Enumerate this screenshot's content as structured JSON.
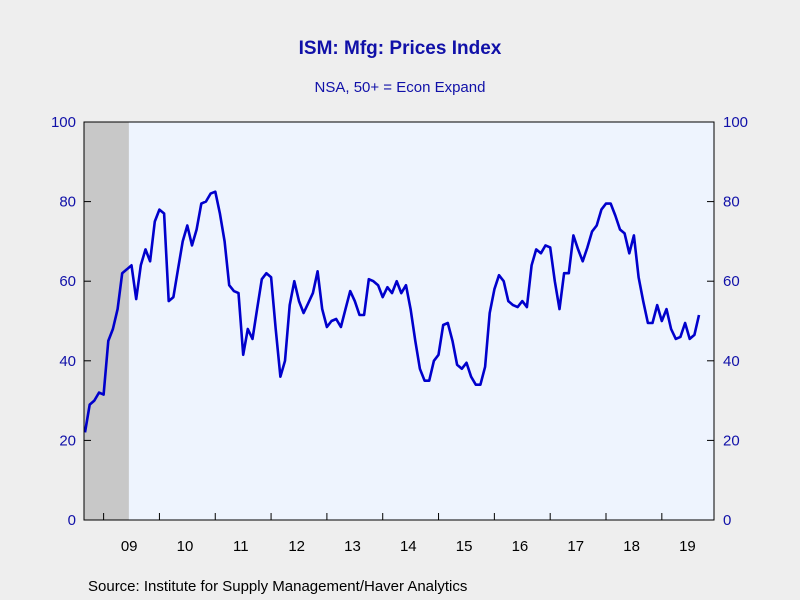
{
  "chart_data": {
    "type": "line",
    "title": "ISM: Mfg: Prices Index",
    "subtitle": "NSA, 50+ = Econ Expand",
    "source": "Source:  Institute for Supply Management/Haver Analytics",
    "x_start": "2008-09",
    "x_end": "2019-12",
    "ylim": [
      0,
      100
    ],
    "y_ticks": [
      0,
      20,
      40,
      60,
      80,
      100
    ],
    "y_tick_labels": [
      "0",
      "20",
      "40",
      "60",
      "80",
      "100"
    ],
    "x_tick_labels": [
      "09",
      "10",
      "11",
      "12",
      "13",
      "14",
      "15",
      "16",
      "17",
      "18",
      "19"
    ],
    "grid": false,
    "dual_y_axis": true,
    "recession_shading": {
      "start": "2008-09",
      "end": "2009-06"
    },
    "colors": {
      "line": "#0000CC",
      "plot_background": "#EEF4FE",
      "recession": "#C8C8C8",
      "axis_text": "#1010A8",
      "page_background": "#EEEEEE"
    },
    "series": [
      {
        "values": [
          22,
          29,
          30,
          32,
          31.5,
          45,
          48,
          53,
          62,
          63,
          64,
          55.5,
          64,
          68,
          65,
          75,
          78,
          77,
          55,
          56,
          63,
          70,
          74,
          69,
          73,
          79.5,
          80,
          82,
          82.5,
          77,
          70,
          59,
          57.5,
          57,
          41.5,
          48,
          45.5,
          53,
          60.5,
          62,
          61,
          48,
          36,
          40,
          54,
          60,
          55,
          52,
          54.5,
          57,
          62.5,
          53,
          48.5,
          50,
          50.5,
          48.5,
          53,
          57.5,
          55,
          51.5,
          51.5,
          60.5,
          60,
          59,
          56,
          58.5,
          57,
          60,
          57,
          59,
          53,
          45,
          38,
          35,
          35,
          40,
          41.5,
          49,
          49.5,
          45,
          39,
          38,
          39.5,
          36,
          34,
          34,
          38.5,
          52,
          58,
          61.5,
          60,
          55,
          54,
          53.5,
          55,
          53.5,
          64,
          68,
          67,
          69,
          68.5,
          60,
          53,
          62,
          62,
          71.5,
          68,
          65,
          68.5,
          72.5,
          74,
          78,
          79.5,
          79.5,
          76.5,
          73,
          72,
          67,
          71.5,
          61,
          55,
          49.5,
          49.5,
          54,
          50,
          53,
          48,
          45.5,
          46,
          49.5,
          45.5,
          46.5,
          51.5
        ]
      }
    ]
  }
}
